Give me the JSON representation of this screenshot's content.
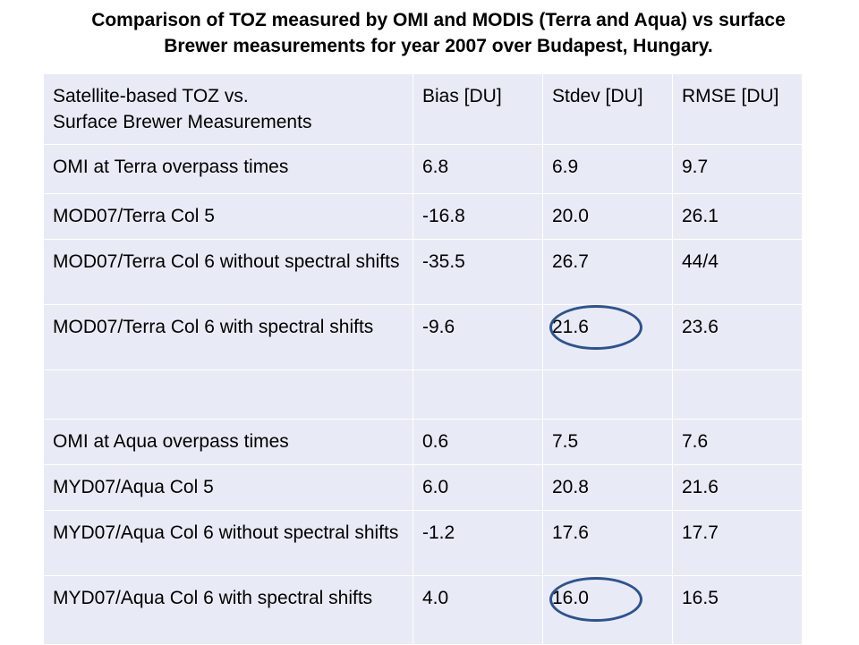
{
  "title": {
    "line1": "Comparison of TOZ measured by OMI and MODIS (Terra and Aqua) vs surface",
    "line2": "Brewer measurements for year 2007 over Budapest, Hungary."
  },
  "table": {
    "header": {
      "label_line1": "Satellite-based TOZ vs.",
      "label_line2": "Surface Brewer Measurements",
      "bias": "Bias [DU]",
      "stdev": "Stdev [DU]",
      "rmse": "RMSE [DU]"
    },
    "rows": [
      {
        "label": "OMI at Terra overpass times",
        "bias": "6.8",
        "stdev": "6.9",
        "rmse": "9.7"
      },
      {
        "label": "MOD07/Terra  Col 5",
        "bias": "-16.8",
        "stdev": "20.0",
        "rmse": "26.1"
      },
      {
        "label": "MOD07/Terra Col 6 without spectral shifts",
        "bias": "-35.5",
        "stdev": "26.7",
        "rmse": "44/4"
      },
      {
        "label": "MOD07/Terra Col 6 with spectral shifts",
        "bias": "-9.6",
        "stdev": "21.6",
        "rmse": "23.6"
      },
      {
        "label": "",
        "bias": "",
        "stdev": "",
        "rmse": ""
      },
      {
        "label": "OMI at Aqua overpass times",
        "bias": "0.6",
        "stdev": "7.5",
        "rmse": "7.6"
      },
      {
        "label": "MYD07/Aqua Col 5",
        "bias": "6.0",
        "stdev": "20.8",
        "rmse": "21.6"
      },
      {
        "label": "MYD07/Aqua Col 6 without spectral shifts",
        "bias": "-1.2",
        "stdev": "17.6",
        "rmse": "17.7"
      },
      {
        "label": "MYD07/Aqua Col 6 with spectral shifts",
        "bias": "4.0",
        "stdev": "16.0",
        "rmse": "16.5"
      }
    ]
  },
  "highlight_color": "#2f528f"
}
